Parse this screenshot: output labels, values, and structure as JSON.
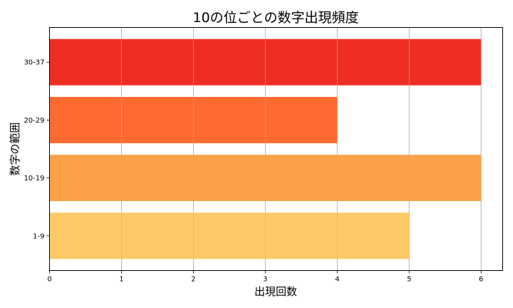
{
  "chart_data": {
    "type": "bar",
    "orientation": "horizontal",
    "title": "10の位ごとの数字出現頻度",
    "xlabel": "出現回数",
    "ylabel": "数字の範囲",
    "categories": [
      "1-9",
      "10-19",
      "20-29",
      "30-37"
    ],
    "values": [
      5,
      6,
      4,
      6
    ],
    "colors": [
      "#fdc967",
      "#fca148",
      "#fd6b31",
      "#ee2e22"
    ],
    "xlim": [
      0,
      6.3
    ],
    "xticks": [
      0,
      1,
      2,
      3,
      4,
      5,
      6
    ],
    "grid": "x",
    "legend": "none"
  }
}
